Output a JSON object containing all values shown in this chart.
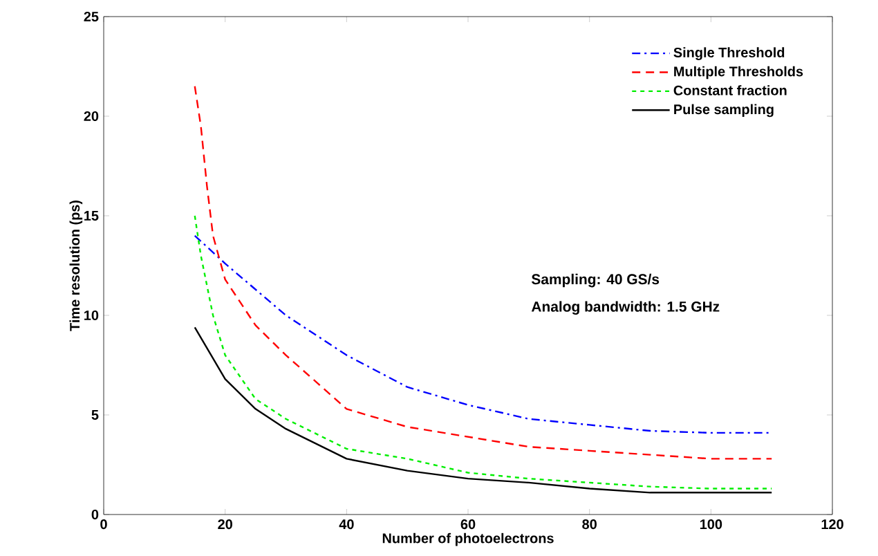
{
  "chart_data": {
    "type": "line",
    "xlabel": "Number of photoelectrons",
    "ylabel": "Time resolution (ps)",
    "xlim": [
      0,
      120
    ],
    "xticks": [
      0,
      20,
      40,
      60,
      80,
      100,
      120
    ],
    "ylim": [
      0,
      25
    ],
    "yticks": [
      0,
      5,
      10,
      15,
      20,
      25
    ],
    "legend": "top right",
    "grid": false,
    "marker": "none",
    "annotations": [
      "Sampling: 40 GS/s",
      "Analog bandwidth: 1.5 GHz"
    ],
    "series": [
      {
        "name": "Single Threshold",
        "color": "#0000ff",
        "line_style": "dashdot",
        "x": [
          15,
          20,
          30,
          40,
          50,
          60,
          70,
          80,
          90,
          100,
          110
        ],
        "values": [
          14.0,
          12.6,
          10.0,
          8.0,
          6.4,
          5.5,
          4.8,
          4.5,
          4.2,
          4.1,
          4.1
        ]
      },
      {
        "name": "Multiple Thresholds",
        "color": "#ff0000",
        "line_style": "dashed",
        "x": [
          15,
          16,
          17,
          18,
          20,
          25,
          30,
          40,
          50,
          60,
          70,
          80,
          90,
          100,
          110
        ],
        "values": [
          21.5,
          19.5,
          16.5,
          14.0,
          11.8,
          9.5,
          8.0,
          5.3,
          4.4,
          3.9,
          3.4,
          3.2,
          3.0,
          2.8,
          2.8
        ]
      },
      {
        "name": "Constant fraction",
        "color": "#00ee00",
        "line_style": "dotted",
        "x": [
          15,
          16,
          18,
          20,
          25,
          30,
          40,
          50,
          60,
          70,
          80,
          90,
          100,
          110
        ],
        "values": [
          15.0,
          13.0,
          10.0,
          8.0,
          5.8,
          4.8,
          3.3,
          2.8,
          2.1,
          1.8,
          1.6,
          1.4,
          1.3,
          1.3
        ]
      },
      {
        "name": "Pulse sampling",
        "color": "#000000",
        "line_style": "solid",
        "x": [
          15,
          20,
          25,
          30,
          40,
          50,
          60,
          70,
          80,
          90,
          100,
          110
        ],
        "values": [
          9.4,
          6.8,
          5.3,
          4.3,
          2.8,
          2.2,
          1.8,
          1.6,
          1.3,
          1.1,
          1.1,
          1.1
        ]
      }
    ]
  }
}
